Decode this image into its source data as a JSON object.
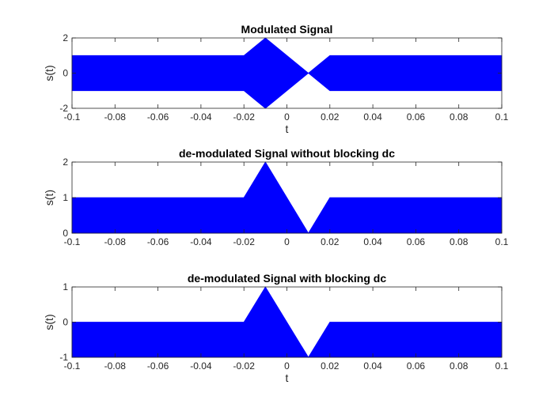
{
  "chart_data": [
    {
      "type": "area",
      "title": "Modulated Signal",
      "xlabel": "t",
      "ylabel": "s(t)",
      "xlim": [
        -0.1,
        0.1
      ],
      "ylim": [
        -2,
        2
      ],
      "xticks": [
        "-0.1",
        "-0.08",
        "-0.06",
        "-0.04",
        "-0.02",
        "0",
        "0.02",
        "0.04",
        "0.06",
        "0.08",
        "0.1"
      ],
      "yticks": [
        "-2",
        "0",
        "2"
      ],
      "grid": false,
      "color": "#0000ff",
      "series": [
        {
          "x": [
            -0.1,
            -0.02,
            -0.01,
            0.01,
            0.02,
            0.1
          ],
          "upper": [
            1,
            1,
            2,
            0,
            1,
            1
          ],
          "lower": [
            -1,
            -1,
            -2,
            0,
            -1,
            -1
          ]
        }
      ]
    },
    {
      "type": "area",
      "title": "de-modulated Signal without blocking dc",
      "xlabel": "",
      "ylabel": "s(t)",
      "xlim": [
        -0.1,
        0.1
      ],
      "ylim": [
        0,
        2
      ],
      "xticks": [
        "-0.1",
        "-0.08",
        "-0.06",
        "-0.04",
        "-0.02",
        "0",
        "0.02",
        "0.04",
        "0.06",
        "0.08",
        "0.1"
      ],
      "yticks": [
        "0",
        "1",
        "2"
      ],
      "grid": false,
      "color": "#0000ff",
      "series": [
        {
          "x": [
            -0.1,
            -0.02,
            -0.01,
            0.01,
            0.02,
            0.1
          ],
          "upper": [
            1,
            1,
            2,
            0,
            1,
            1
          ],
          "lower": [
            0,
            0,
            0,
            0,
            0,
            0
          ]
        }
      ]
    },
    {
      "type": "area",
      "title": "de-modulated Signal with blocking dc",
      "xlabel": "t",
      "ylabel": "s(t)",
      "xlim": [
        -0.1,
        0.1
      ],
      "ylim": [
        -1,
        1
      ],
      "xticks": [
        "-0.1",
        "-0.08",
        "-0.06",
        "-0.04",
        "-0.02",
        "0",
        "0.02",
        "0.04",
        "0.06",
        "0.08",
        "0.1"
      ],
      "yticks": [
        "-1",
        "0",
        "1"
      ],
      "grid": false,
      "color": "#0000ff",
      "series": [
        {
          "x": [
            -0.1,
            -0.02,
            -0.01,
            0.01,
            0.02,
            0.1
          ],
          "upper": [
            0,
            0,
            1,
            -1,
            0,
            0
          ],
          "lower": [
            -1,
            -1,
            -1,
            -1,
            -1,
            -1
          ]
        }
      ]
    }
  ]
}
